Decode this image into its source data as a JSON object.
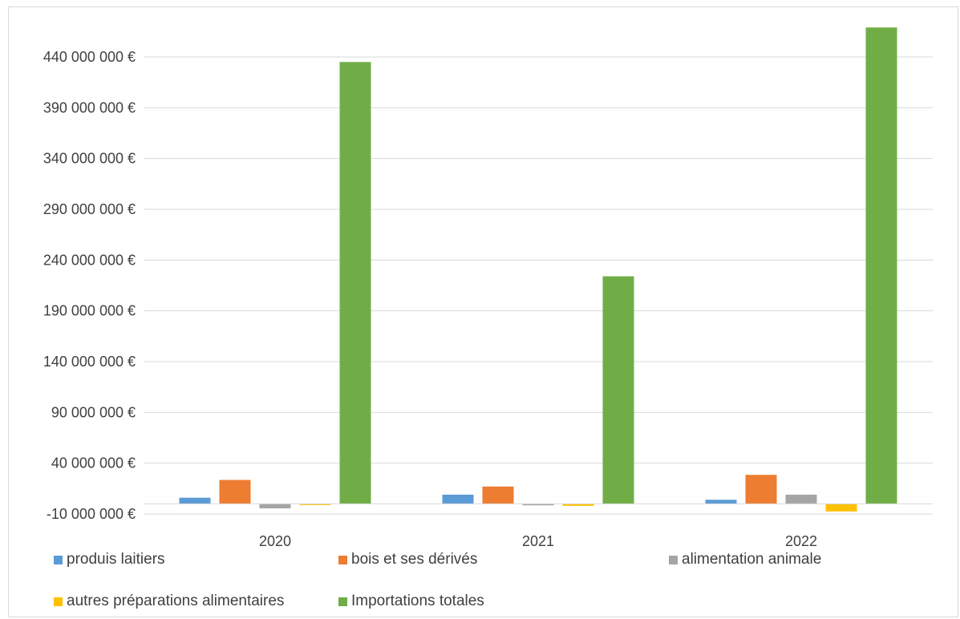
{
  "chart_data": {
    "type": "bar",
    "title": "",
    "xlabel": "",
    "ylabel": "",
    "categories": [
      "2020",
      "2021",
      "2022"
    ],
    "y_ticks": [
      "-10 000 000 €",
      "40 000 000 €",
      "90 000 000 €",
      "140 000 000 €",
      "190 000 000 €",
      "240 000 000 €",
      "290 000 000 €",
      "340 000 000 €",
      "390 000 000 €",
      "440 000 000 €"
    ],
    "ylim": [
      -10000000,
      465000000
    ],
    "grid": true,
    "legend_position": "bottom",
    "series": [
      {
        "name": "produis laitiers",
        "color": "#5b9bd5",
        "values": [
          6000000,
          9000000,
          4000000
        ]
      },
      {
        "name": "bois et ses dérivés",
        "color": "#ed7d31",
        "values": [
          23500000,
          17000000,
          28500000
        ]
      },
      {
        "name": "alimentation animale",
        "color": "#a5a5a5",
        "values": [
          -4500000,
          -1500000,
          9000000
        ]
      },
      {
        "name": "autres préparations alimentaires",
        "color": "#ffc000",
        "values": [
          -500000,
          -2000000,
          -7500000
        ]
      },
      {
        "name": "Importations totales",
        "color": "#70ad47",
        "values": [
          435000000,
          224000000,
          469000000
        ]
      }
    ]
  }
}
